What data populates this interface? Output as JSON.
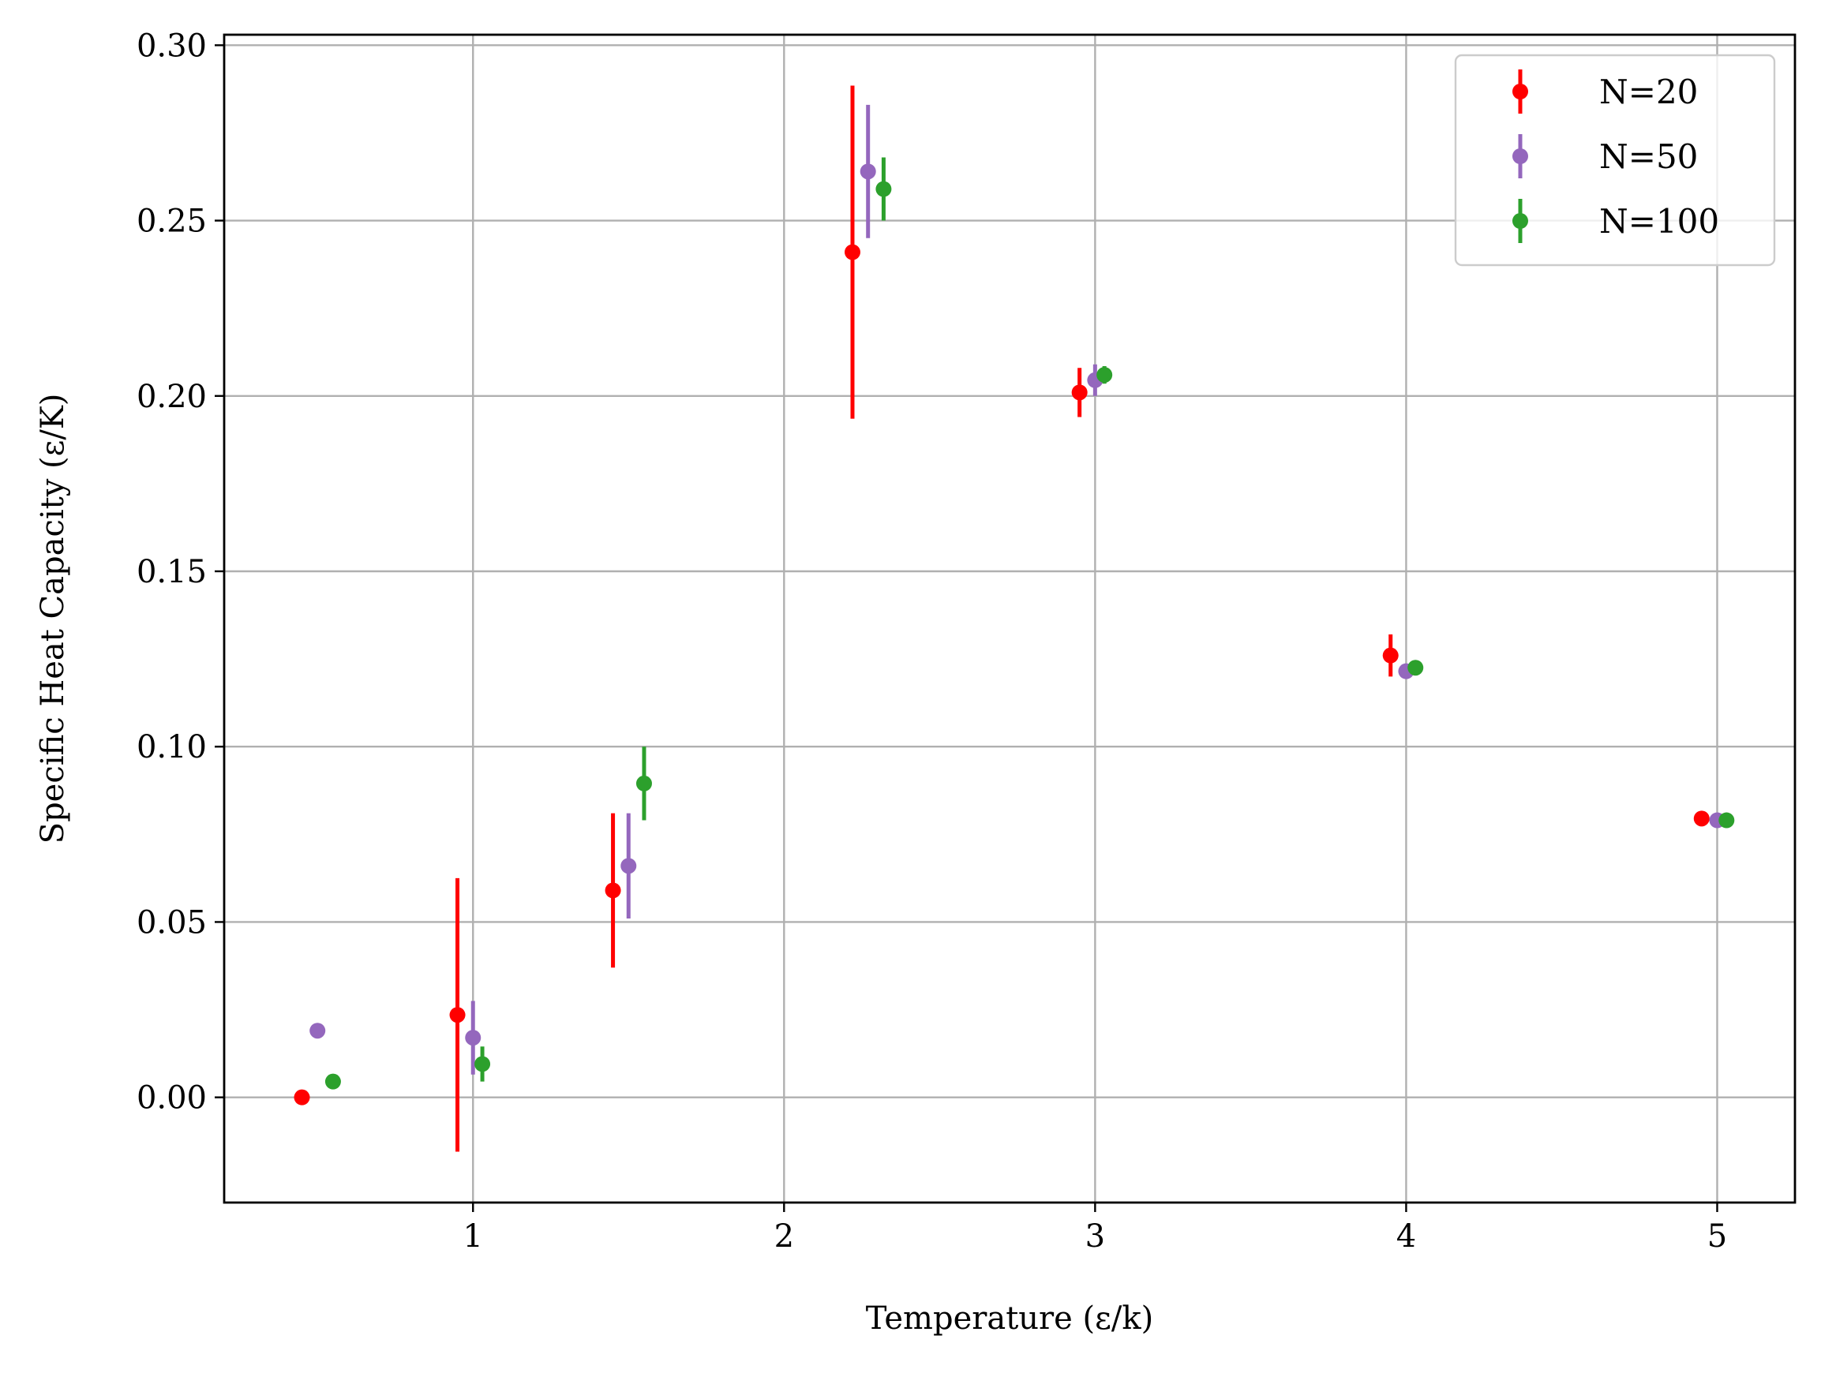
{
  "chart_data": {
    "type": "scatter",
    "title": "",
    "xlabel": "Temperature (ε/k)",
    "ylabel": "Specific Heat Capacity (ε/K)",
    "xlim": [
      0.2,
      5.25
    ],
    "ylim": [
      -0.03,
      0.303
    ],
    "xticks": [
      1,
      2,
      3,
      4,
      5
    ],
    "xtick_labels": [
      "1",
      "2",
      "3",
      "4",
      "5"
    ],
    "yticks": [
      0.0,
      0.05,
      0.1,
      0.15,
      0.2,
      0.25,
      0.3
    ],
    "ytick_labels": [
      "0.00",
      "0.05",
      "0.10",
      "0.15",
      "0.20",
      "0.25",
      "0.30"
    ],
    "grid": true,
    "legend_position": "top-right",
    "series": [
      {
        "name": "N=20",
        "color": "#ff0000",
        "x": [
          0.45,
          0.95,
          1.45,
          2.22,
          2.95,
          3.95,
          4.95
        ],
        "y": [
          0.0,
          0.0235,
          0.059,
          0.241,
          0.201,
          0.126,
          0.0795
        ],
        "yerr": [
          0.0,
          0.039,
          0.022,
          0.0475,
          0.007,
          0.006,
          0.0
        ]
      },
      {
        "name": "N=50",
        "color": "#9467bd",
        "x": [
          0.5,
          1.0,
          1.5,
          2.27,
          3.0,
          4.0,
          5.0
        ],
        "y": [
          0.019,
          0.017,
          0.066,
          0.264,
          0.2045,
          0.1215,
          0.079
        ],
        "yerr": [
          0.0,
          0.0105,
          0.015,
          0.019,
          0.0045,
          0.0,
          0.0
        ]
      },
      {
        "name": "N=100",
        "color": "#2ca02c",
        "x": [
          0.55,
          1.03,
          1.55,
          2.32,
          3.03,
          4.03,
          5.03
        ],
        "y": [
          0.0045,
          0.0095,
          0.0895,
          0.259,
          0.206,
          0.1225,
          0.079
        ],
        "yerr": [
          0.0,
          0.005,
          0.0105,
          0.009,
          0.0025,
          0.0,
          0.0
        ]
      }
    ]
  }
}
